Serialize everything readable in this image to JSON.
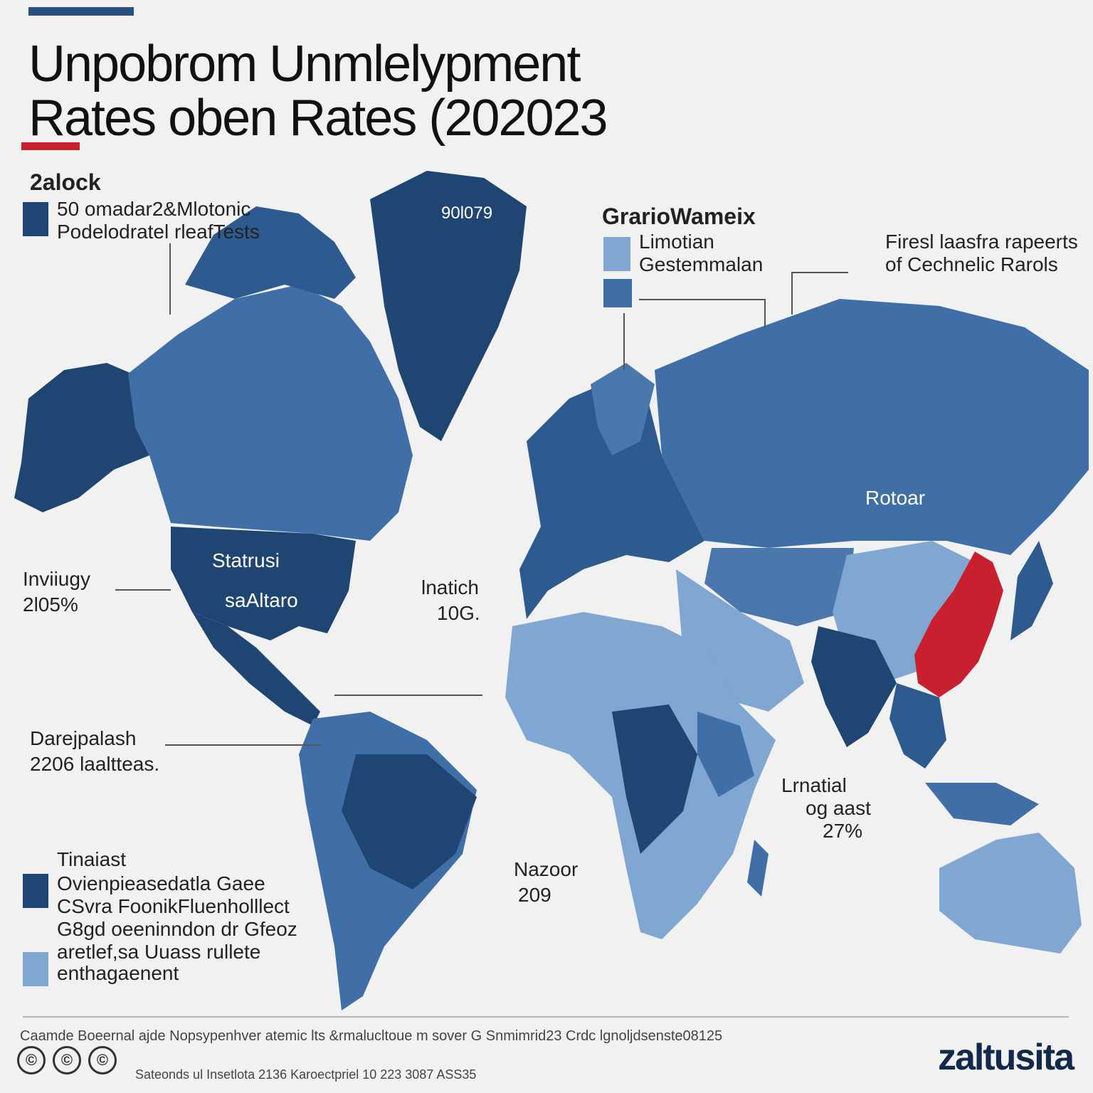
{
  "title_line1": "Unpobrom Unmlelypment",
  "title_line2": "Rates oben Rates (202023",
  "legend_left": {
    "heading": "2alock",
    "line1": "50 omadar2&Mlotonic",
    "line2": "Podelodratel rleafTests",
    "swatch_color": "#1f4673"
  },
  "legend_right": {
    "heading": "GrarioWameix",
    "line1": "Limotian",
    "line2": "Gestemmalan",
    "swatch1_color": "#7fa7d1",
    "swatch2_color": "#3f6fa6"
  },
  "note_top_right": {
    "line1": "Firesl laasfra rapeerts",
    "line2": "of Cechnelic Rarols"
  },
  "map_labels": {
    "greenland": "90l079",
    "usa_line1": "Statrusi",
    "usa_line2": "saAltaro",
    "russia": "Rotoar"
  },
  "callouts": {
    "left_line1": "Inviiugy",
    "left_line2": "2l05%",
    "center_line1": "lnatich",
    "center_line2": "10G.",
    "sa_line1": "Darejpalash",
    "sa_line2": "2206 laaltteas.",
    "sea_line1": "Lrnatial",
    "sea_line2": "og aast",
    "sea_line3": "27%",
    "africa_line1": "Nazoor",
    "africa_line2": "209"
  },
  "legend_bottom": {
    "heading": "Tinaiast",
    "line1": "Ovienpieasedatla Gaee",
    "line2": "CSvra FoonikFluenholllect",
    "line3": "G8gd oeeninndon dr Gfeoz",
    "line4": "aretlef,sa Uuass rullete",
    "line5": "enthagaenent",
    "swatch1_color": "#1f4673",
    "swatch2_color": "#7fa7d1"
  },
  "footer": {
    "source": "Caamde Boeernal ajde Nopsypenhver atemic lts &rmalucltoue m sover G Snmimrid23 Crdc lgnoljdsenste08125",
    "fineprint": "Sateonds ul Insetlota 2136 Karoectpriel 10 223 3087 ASS35",
    "logo": "zaltusita",
    "icon1": "©",
    "icon2": "©",
    "icon3": "©"
  },
  "colors": {
    "dark": "#1f4673",
    "mid": "#3f6fa6",
    "light": "#7fa7d1",
    "highlight": "#c8202f"
  }
}
